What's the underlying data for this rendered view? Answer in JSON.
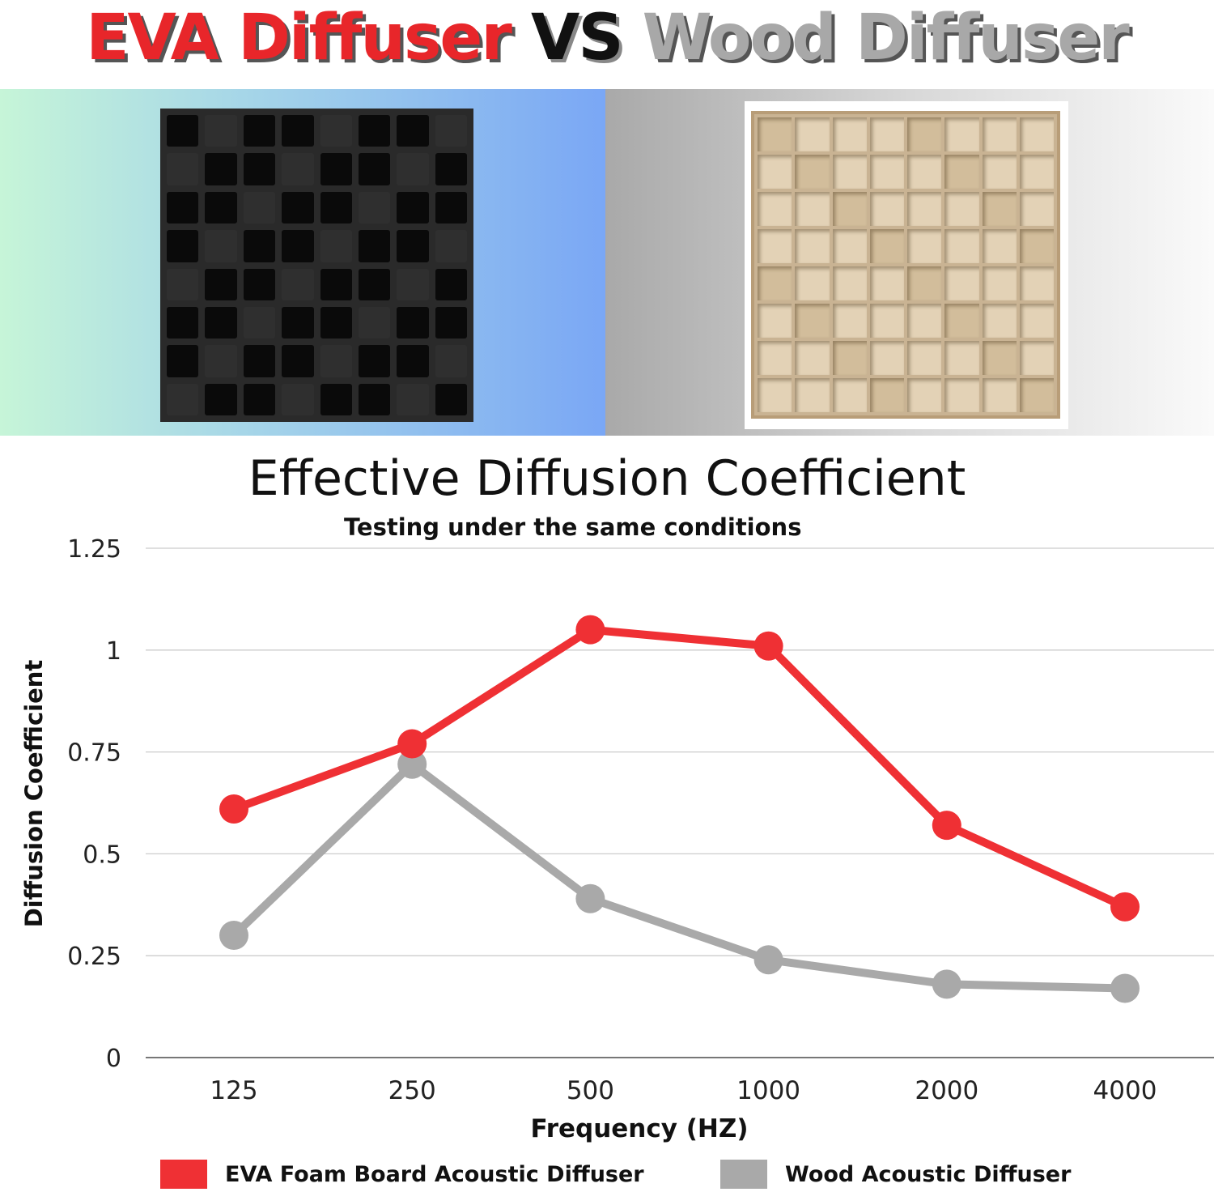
{
  "header": {
    "eva": "EVA Diffuser",
    "vs": "VS",
    "wood": "Wood Diffuser"
  },
  "colors": {
    "eva": "#ef3034",
    "wood": "#a9a9a9"
  },
  "chart_data": {
    "type": "line",
    "title": "Effective Diffusion Coefficient",
    "subtitle": "Testing under the same conditions",
    "xlabel": "Frequency (HZ)",
    "ylabel": "Diffusion Coefficient",
    "categories": [
      "125",
      "250",
      "500",
      "1000",
      "2000",
      "4000"
    ],
    "yticks": [
      "0",
      "0.25",
      "0.5",
      "0.75",
      "1",
      "1.25"
    ],
    "ylim": [
      0,
      1.25
    ],
    "grid": true,
    "legend_position": "bottom",
    "series": [
      {
        "name": "EVA Foam Board Acoustic Diffuser",
        "color": "#ef3034",
        "values": [
          0.61,
          0.77,
          1.05,
          1.01,
          0.57,
          0.37
        ]
      },
      {
        "name": "Wood Acoustic Diffuser",
        "color": "#a9a9a9",
        "values": [
          0.3,
          0.72,
          0.39,
          0.24,
          0.18,
          0.17
        ]
      }
    ]
  }
}
